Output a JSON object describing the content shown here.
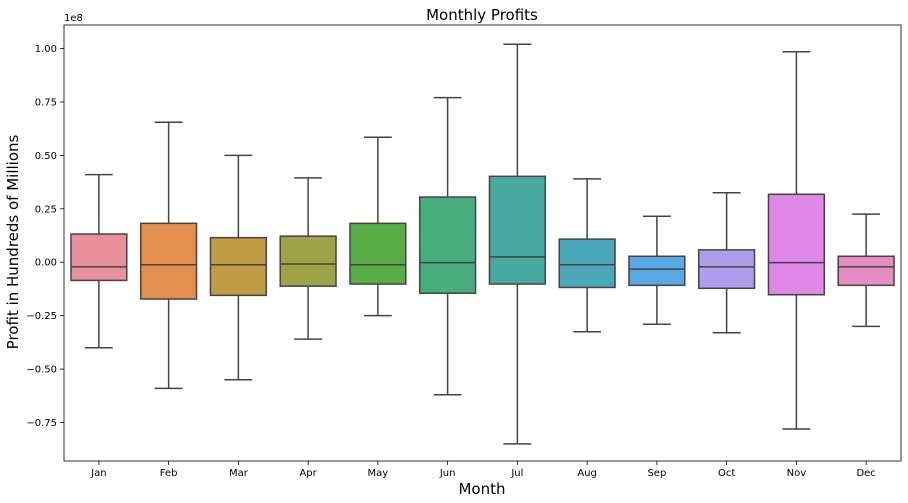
{
  "chart_data": {
    "type": "box",
    "title": "Monthly Profits",
    "xlabel": "Month",
    "ylabel": "Profit in Hundreds of Millions",
    "y_offset_label": "1e8",
    "ylim": [
      -0.93,
      1.11
    ],
    "yticks": [
      -0.75,
      -0.5,
      -0.25,
      0.0,
      0.25,
      0.5,
      0.75,
      1.0
    ],
    "ytick_labels": [
      "−0.75",
      "−0.50",
      "−0.25",
      "0.00",
      "0.25",
      "0.50",
      "0.75",
      "1.00"
    ],
    "grid": false,
    "categories": [
      "Jan",
      "Feb",
      "Mar",
      "Apr",
      "May",
      "Jun",
      "Jul",
      "Aug",
      "Sep",
      "Oct",
      "Nov",
      "Dec"
    ],
    "boxes": [
      {
        "category": "Jan",
        "whislo": -0.4,
        "q1": -0.085,
        "med": -0.022,
        "q3": 0.132,
        "whishi": 0.41,
        "color": "#e8919c"
      },
      {
        "category": "Feb",
        "whislo": -0.59,
        "q1": -0.172,
        "med": -0.012,
        "q3": 0.182,
        "whishi": 0.655,
        "color": "#e48f4f"
      },
      {
        "category": "Mar",
        "whislo": -0.55,
        "q1": -0.155,
        "med": -0.012,
        "q3": 0.115,
        "whishi": 0.5,
        "color": "#c09c45"
      },
      {
        "category": "Apr",
        "whislo": -0.36,
        "q1": -0.112,
        "med": -0.008,
        "q3": 0.122,
        "whishi": 0.395,
        "color": "#9ea445"
      },
      {
        "category": "May",
        "whislo": -0.25,
        "q1": -0.102,
        "med": -0.012,
        "q3": 0.182,
        "whishi": 0.585,
        "color": "#58ad45"
      },
      {
        "category": "Jun",
        "whislo": -0.62,
        "q1": -0.145,
        "med": -0.002,
        "q3": 0.305,
        "whishi": 0.77,
        "color": "#48ae7e"
      },
      {
        "category": "Jul",
        "whislo": -0.85,
        "q1": -0.102,
        "med": 0.025,
        "q3": 0.402,
        "whishi": 1.02,
        "color": "#48aa9f"
      },
      {
        "category": "Aug",
        "whislo": -0.325,
        "q1": -0.118,
        "med": -0.012,
        "q3": 0.108,
        "whishi": 0.39,
        "color": "#4aa6b8"
      },
      {
        "category": "Sep",
        "whislo": -0.29,
        "q1": -0.108,
        "med": -0.032,
        "q3": 0.028,
        "whishi": 0.215,
        "color": "#5aa8e4"
      },
      {
        "category": "Oct",
        "whislo": -0.33,
        "q1": -0.122,
        "med": -0.022,
        "q3": 0.058,
        "whishi": 0.325,
        "color": "#ae9dea"
      },
      {
        "category": "Nov",
        "whislo": -0.78,
        "q1": -0.152,
        "med": -0.002,
        "q3": 0.318,
        "whishi": 0.985,
        "color": "#df88e8"
      },
      {
        "category": "Dec",
        "whislo": -0.3,
        "q1": -0.108,
        "med": -0.022,
        "q3": 0.028,
        "whishi": 0.225,
        "color": "#e68cc3"
      }
    ]
  }
}
